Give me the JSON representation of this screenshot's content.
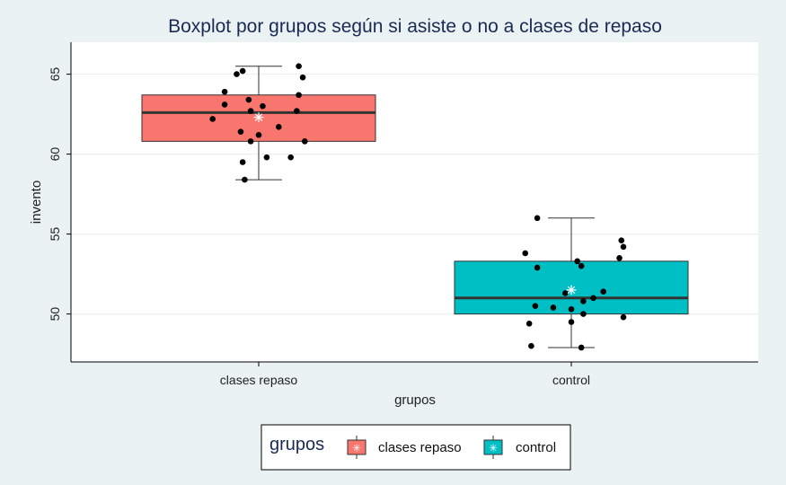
{
  "chart_data": {
    "type": "boxplot",
    "title": "Boxplot por grupos según si asiste o no a clases de repaso",
    "xlabel": "grupos",
    "ylabel": "invento",
    "ylim": [
      47,
      67
    ],
    "yticks": [
      50,
      55,
      60,
      65
    ],
    "grid": true,
    "categories": [
      "clases repaso",
      "control"
    ],
    "colors": {
      "clases repaso": "#f8766d",
      "control": "#00bfc4",
      "background": "#eaf2f3",
      "panel": "#ffffff",
      "grid": "#ececec",
      "points": "#000000",
      "mean_marker": "#ffffff",
      "title": "#1a2a55"
    },
    "groups": [
      {
        "name": "clases repaso",
        "whisker_low": 58.4,
        "q1": 60.8,
        "median": 62.6,
        "q3": 63.7,
        "whisker_high": 65.5,
        "mean": 62.3,
        "points": [
          [
            -0.23,
            62.2
          ],
          [
            -0.17,
            63.1
          ],
          [
            -0.17,
            63.9
          ],
          [
            -0.11,
            65.0
          ],
          [
            -0.08,
            65.2
          ],
          [
            -0.09,
            61.4
          ],
          [
            -0.08,
            59.5
          ],
          [
            -0.05,
            63.4
          ],
          [
            -0.04,
            62.7
          ],
          [
            -0.04,
            60.8
          ],
          [
            0.0,
            61.2
          ],
          [
            0.02,
            63.0
          ],
          [
            0.04,
            59.8
          ],
          [
            0.1,
            61.7
          ],
          [
            0.16,
            59.8
          ],
          [
            0.19,
            62.7
          ],
          [
            0.2,
            63.7
          ],
          [
            0.2,
            65.5
          ],
          [
            0.22,
            64.8
          ],
          [
            0.23,
            60.8
          ],
          [
            -0.07,
            58.4
          ]
        ]
      },
      {
        "name": "control",
        "whisker_low": 47.9,
        "q1": 50.0,
        "median": 51.0,
        "q3": 53.3,
        "whisker_high": 56.0,
        "mean": 51.5,
        "points": [
          [
            -0.23,
            53.8
          ],
          [
            -0.21,
            49.4
          ],
          [
            -0.2,
            48.0
          ],
          [
            -0.18,
            50.5
          ],
          [
            -0.17,
            52.9
          ],
          [
            -0.17,
            56.0
          ],
          [
            -0.09,
            50.4
          ],
          [
            -0.03,
            51.3
          ],
          [
            0.0,
            49.5
          ],
          [
            0.0,
            50.3
          ],
          [
            0.03,
            53.3
          ],
          [
            0.05,
            53.0
          ],
          [
            0.05,
            47.9
          ],
          [
            0.06,
            50.8
          ],
          [
            0.06,
            50.0
          ],
          [
            0.11,
            51.0
          ],
          [
            0.16,
            51.4
          ],
          [
            0.24,
            53.5
          ],
          [
            0.25,
            54.6
          ],
          [
            0.26,
            54.2
          ],
          [
            0.26,
            49.8
          ]
        ]
      }
    ],
    "legend": {
      "title": "grupos",
      "position": "bottom",
      "items": [
        "clases repaso",
        "control"
      ]
    }
  }
}
